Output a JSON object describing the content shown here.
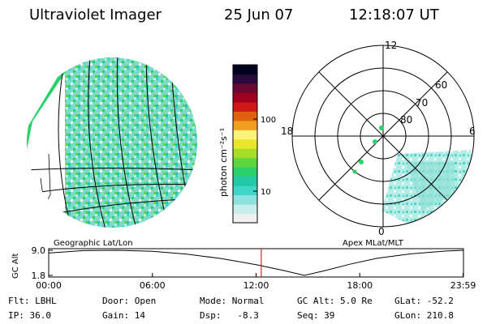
{
  "header": {
    "instrument": "Ultraviolet Imager",
    "date": "25 Jun 07",
    "time": "12:18:07 UT"
  },
  "colorbar": {
    "unit_label": "photon cm⁻²s⁻¹",
    "ticks": [
      {
        "label": "100",
        "value": 100
      },
      {
        "label": "10",
        "value": 10
      }
    ],
    "colors": [
      "#f0f0f0",
      "#c8ecec",
      "#8ee2de",
      "#3fd6c8",
      "#22c8a8",
      "#2ad06a",
      "#5cd63c",
      "#a6dc2a",
      "#e6e62a",
      "#fff27a",
      "#f0a020",
      "#e06010",
      "#d01818",
      "#a00020",
      "#6a0a30",
      "#2a0a3a",
      "#000020"
    ]
  },
  "geo_panel": {
    "label": "Geographic Lat/Lon",
    "image_fill": "#7ad6c2",
    "accent_fill": "#2ad06a"
  },
  "apex_panel": {
    "label": "Apex MLat/MLT",
    "mlt_labels": {
      "top": "12",
      "bottom": "0",
      "left": "18",
      "right": "6"
    },
    "lat_labels": [
      "80",
      "70",
      "60"
    ]
  },
  "altitude_plot": {
    "ylabel": "GC Alt",
    "yticks": [
      {
        "label": "9.0",
        "value": 9.0
      },
      {
        "label": "1.8",
        "value": 1.8
      }
    ],
    "xticks": [
      {
        "label": "00:00",
        "hour": 0
      },
      {
        "label": "06:00",
        "hour": 6
      },
      {
        "label": "12:00",
        "hour": 12
      },
      {
        "label": "18:00",
        "hour": 18
      },
      {
        "label": "23:59",
        "hour": 23.98
      }
    ],
    "marker_hour": 12.3,
    "marker_color": "#cc0000",
    "curve": [
      {
        "hour": 0,
        "alt": 8.2
      },
      {
        "hour": 2,
        "alt": 8.9
      },
      {
        "hour": 4,
        "alt": 9.0
      },
      {
        "hour": 6,
        "alt": 8.7
      },
      {
        "hour": 8,
        "alt": 7.9
      },
      {
        "hour": 10,
        "alt": 6.6
      },
      {
        "hour": 12,
        "alt": 4.9
      },
      {
        "hour": 13.5,
        "alt": 3.3
      },
      {
        "hour": 14.8,
        "alt": 1.8
      },
      {
        "hour": 16,
        "alt": 3.2
      },
      {
        "hour": 17.5,
        "alt": 5.1
      },
      {
        "hour": 19,
        "alt": 6.7
      },
      {
        "hour": 21,
        "alt": 8.0
      },
      {
        "hour": 23,
        "alt": 8.8
      },
      {
        "hour": 23.98,
        "alt": 9.0
      }
    ]
  },
  "status": {
    "row1": {
      "flt": "Flt: LBHL",
      "door": "Door: Open",
      "mode": "Mode: Normal",
      "gcalt": "GC Alt: 5.0 Re",
      "glat": "GLat: -52.2"
    },
    "row2": {
      "ip": "IP: 36.0",
      "gain": "Gain: 14",
      "dsp": "Dsp:   -8.3",
      "seq": "Seq: 39",
      "glon": "GLon: 210.8"
    }
  }
}
